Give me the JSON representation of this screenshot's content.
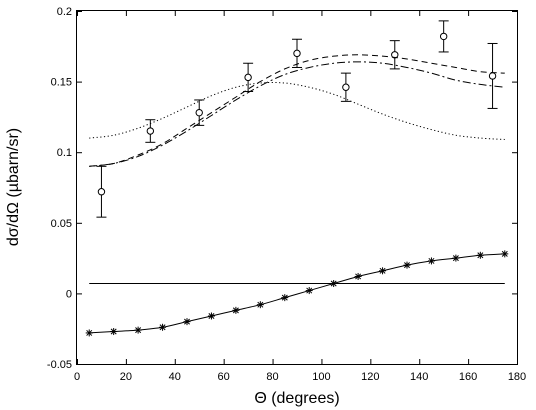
{
  "chart_data": {
    "type": "scatter",
    "xlabel": "Θ  (degrees)",
    "ylabel": "dσ/dΩ  (µbarn/sr)",
    "xlim": [
      0,
      180
    ],
    "ylim": [
      -0.05,
      0.2
    ],
    "x_ticks": [
      "0",
      "20",
      "40",
      "60",
      "80",
      "100",
      "120",
      "140",
      "160",
      "180"
    ],
    "y_ticks": [
      "-0.05",
      "0",
      "0.05",
      "0.1",
      "0.15",
      "0.2"
    ],
    "grid": false,
    "legend": "none",
    "series": [
      {
        "style": "data-circles-errorbars",
        "x": [
          10,
          30,
          50,
          70,
          90,
          110,
          130,
          150,
          170
        ],
        "y": [
          0.072,
          0.115,
          0.128,
          0.153,
          0.17,
          0.146,
          0.169,
          0.182,
          0.154
        ],
        "err": [
          0.018,
          0.008,
          0.009,
          0.01,
          0.01,
          0.01,
          0.01,
          0.011,
          0.023
        ]
      },
      {
        "style": "dashed",
        "x": [
          5,
          15,
          25,
          35,
          45,
          55,
          65,
          75,
          85,
          95,
          105,
          115,
          125,
          135,
          145,
          155,
          165,
          175
        ],
        "y": [
          0.09,
          0.092,
          0.098,
          0.106,
          0.117,
          0.128,
          0.139,
          0.15,
          0.159,
          0.165,
          0.168,
          0.169,
          0.168,
          0.166,
          0.163,
          0.16,
          0.157,
          0.156
        ]
      },
      {
        "style": "dash-dot",
        "x": [
          5,
          15,
          25,
          35,
          45,
          55,
          65,
          75,
          85,
          95,
          105,
          115,
          125,
          135,
          145,
          155,
          165,
          175
        ],
        "y": [
          0.09,
          0.092,
          0.097,
          0.105,
          0.115,
          0.126,
          0.137,
          0.147,
          0.155,
          0.16,
          0.163,
          0.164,
          0.163,
          0.16,
          0.156,
          0.151,
          0.148,
          0.146
        ]
      },
      {
        "style": "dotted",
        "x": [
          5,
          15,
          25,
          35,
          45,
          55,
          65,
          75,
          85,
          95,
          105,
          115,
          125,
          135,
          145,
          155,
          165,
          175
        ],
        "y": [
          0.11,
          0.112,
          0.117,
          0.124,
          0.132,
          0.14,
          0.146,
          0.149,
          0.149,
          0.146,
          0.141,
          0.134,
          0.127,
          0.121,
          0.116,
          0.112,
          0.11,
          0.109
        ]
      },
      {
        "style": "solid-flat",
        "x": [
          5,
          175
        ],
        "y": [
          0.007,
          0.007
        ]
      },
      {
        "style": "solid-star-markers",
        "x": [
          5,
          15,
          25,
          35,
          45,
          55,
          65,
          75,
          85,
          95,
          105,
          115,
          125,
          135,
          145,
          155,
          165,
          175
        ],
        "y": [
          -0.028,
          -0.027,
          -0.026,
          -0.024,
          -0.02,
          -0.016,
          -0.012,
          -0.008,
          -0.003,
          0.002,
          0.007,
          0.012,
          0.016,
          0.02,
          0.023,
          0.025,
          0.027,
          0.028
        ]
      }
    ]
  }
}
